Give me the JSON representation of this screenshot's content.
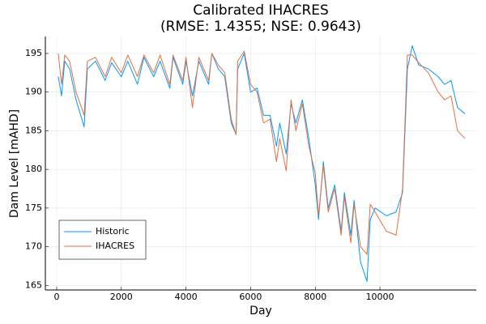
{
  "chart_data": {
    "type": "line",
    "title": "Calibrated IHACRES",
    "subtitle": "(RMSE: 1.4355; NSE: 0.9643)",
    "x_label": "Day",
    "y_label": "Dam Level [mAHD]",
    "x": [
      50,
      150,
      250,
      400,
      600,
      850,
      950,
      1200,
      1500,
      1700,
      2000,
      2200,
      2500,
      2700,
      3000,
      3200,
      3500,
      3600,
      3900,
      4000,
      4200,
      4400,
      4700,
      4800,
      5000,
      5200,
      5400,
      5550,
      5600,
      5800,
      6000,
      6200,
      6400,
      6600,
      6800,
      6900,
      7100,
      7250,
      7400,
      7600,
      7800,
      8000,
      8100,
      8250,
      8400,
      8600,
      8800,
      8900,
      9100,
      9200,
      9400,
      9600,
      9700,
      9850,
      10200,
      10500,
      10700,
      10850,
      11000,
      11200,
      11500,
      11800,
      12000,
      12200,
      12400,
      12630
    ],
    "series": [
      {
        "name": "Historic",
        "color": "#009afa",
        "values": [
          192,
          189.5,
          194,
          193,
          189,
          185.5,
          193,
          194,
          191.5,
          193.8,
          192,
          194,
          191,
          194.5,
          192,
          194,
          190.5,
          194.5,
          191,
          194,
          189.5,
          194,
          191,
          195,
          193,
          192,
          186,
          184.5,
          193,
          195,
          190,
          190.5,
          187,
          187,
          183,
          186,
          182,
          188.5,
          186,
          189,
          184,
          178,
          173.5,
          181,
          175,
          178,
          172,
          177,
          171.5,
          176,
          168,
          165.5,
          173.5,
          175,
          174,
          174.5,
          177,
          193,
          196,
          193.5,
          193,
          192,
          191,
          191.5,
          188,
          187.2
        ]
      },
      {
        "name": "IHACRES",
        "color": "#e26f46",
        "values": [
          195,
          191,
          194.8,
          194,
          190,
          187,
          194,
          194.5,
          192,
          194.5,
          192.5,
          194.8,
          192,
          194.8,
          192.5,
          194.8,
          191,
          194.8,
          191.5,
          194.5,
          188,
          194.5,
          191.5,
          195,
          193.5,
          192.5,
          186.5,
          184.5,
          194,
          195.3,
          191,
          190,
          186,
          186.5,
          181,
          184,
          179.8,
          189,
          185,
          188.5,
          183,
          179.5,
          174,
          180.5,
          174.5,
          177.5,
          171.5,
          176.5,
          170.5,
          175.5,
          170,
          169,
          175.5,
          174.5,
          172,
          171.5,
          177.5,
          194.8,
          194.8,
          193.8,
          192.5,
          190,
          189,
          189.5,
          185,
          184
        ]
      }
    ],
    "xlim": [
      -350,
      12980
    ],
    "xticks": [
      0,
      2000,
      4000,
      6000,
      8000,
      10000
    ],
    "ylim": [
      164.4,
      197.2
    ],
    "yticks": [
      165,
      170,
      175,
      180,
      185,
      190,
      195
    ],
    "grid": true,
    "legend": "bottom-left"
  }
}
